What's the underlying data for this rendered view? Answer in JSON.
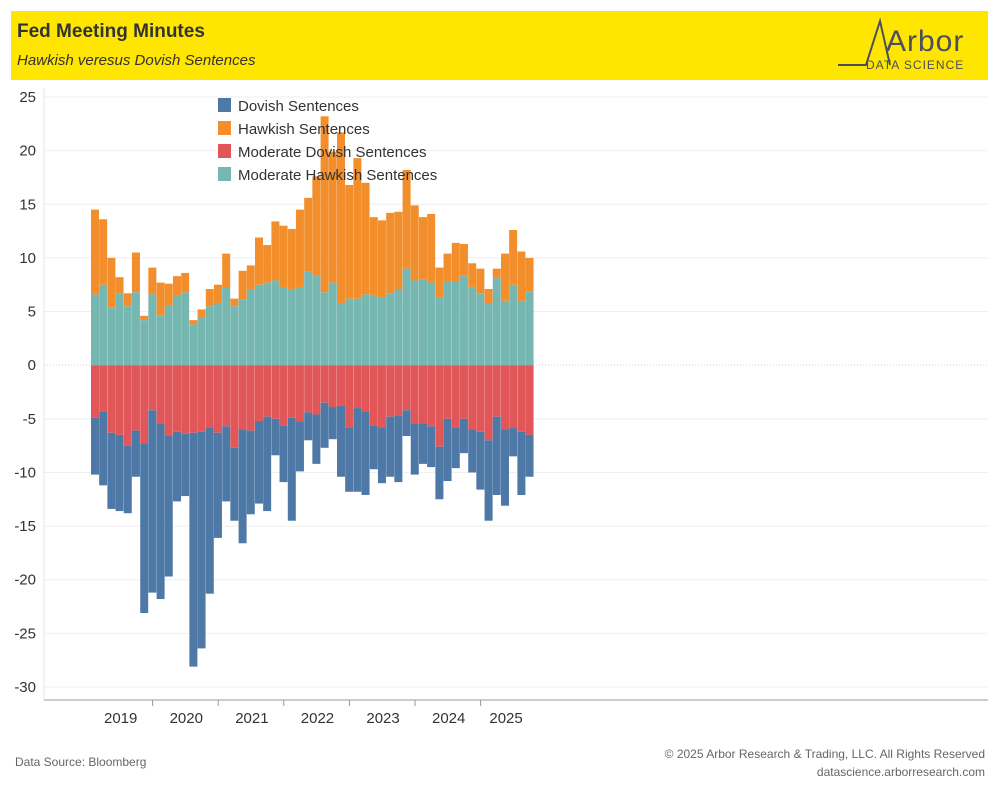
{
  "header": {
    "title": "Fed Meeting Minutes",
    "subtitle": "Hawkish veresus Dovish Sentences",
    "logo_word": "Arbor",
    "logo_sub": "DATA SCIENCE"
  },
  "footer": {
    "source": "Data Source: Bloomberg",
    "copyright": "© 2025 Arbor Research & Trading, LLC. All Rights Reserved",
    "website": "datascience.arborresearch.com"
  },
  "colors": {
    "dovish": "#4e79a7",
    "hawkish": "#f28e2b",
    "moderate_dovish": "#e15759",
    "moderate_hawkish": "#76b7b2",
    "header_bg": "#ffe600"
  },
  "chart_data": {
    "type": "bar",
    "stacked": true,
    "ylim": [
      -31,
      25
    ],
    "yticks": [
      25,
      20,
      15,
      10,
      5,
      0,
      -5,
      -10,
      -15,
      -20,
      -25,
      -30
    ],
    "year_labels": [
      "2019",
      "2020",
      "2021",
      "2022",
      "2023",
      "2024",
      "2025"
    ],
    "legend": [
      "Dovish Sentences",
      "Hawkish Sentences",
      "Moderate Dovish Sentences",
      "Moderate Hawkish Sentences"
    ],
    "legend_placement": "top-left",
    "grid": true,
    "meetings_per_year": 8,
    "series": [
      {
        "name": "Moderate Hawkish Sentences",
        "values": [
          6.6,
          7.5,
          5.4,
          6.7,
          5.5,
          6.8,
          4.2,
          6.6,
          4.6,
          5.6,
          6.5,
          6.8,
          3.8,
          4.5,
          5.5,
          5.8,
          7.2,
          5.5,
          6.1,
          7.1,
          7.5,
          7.7,
          7.9,
          7.2,
          7.1,
          7.2,
          8.7,
          8.4,
          6.8,
          7.7,
          5.8,
          6.2,
          6.2,
          6.6,
          6.5,
          6.3,
          6.7,
          7.1,
          9.0,
          7.9,
          8.0,
          7.7,
          6.3,
          7.8,
          7.8,
          8.3,
          7.3,
          6.7,
          5.7,
          8.1,
          6.0,
          7.5,
          6.0,
          6.9
        ]
      },
      {
        "name": "Hawkish Sentences",
        "values": [
          7.9,
          6.1,
          4.6,
          1.5,
          1.2,
          3.7,
          0.4,
          2.5,
          3.1,
          2.0,
          1.8,
          1.8,
          0.4,
          0.7,
          1.6,
          1.7,
          3.2,
          0.7,
          2.7,
          2.2,
          4.4,
          3.5,
          5.5,
          5.8,
          5.6,
          7.3,
          6.9,
          9.2,
          16.4,
          12.2,
          15.9,
          10.6,
          13.1,
          10.4,
          7.3,
          7.2,
          7.5,
          7.2,
          9.2,
          7.0,
          5.8,
          6.4,
          2.8,
          2.6,
          3.6,
          3.0,
          2.2,
          2.3,
          1.4,
          0.9,
          4.4,
          5.1,
          4.6,
          3.1
        ]
      },
      {
        "name": "Moderate Dovish Sentences",
        "values": [
          -4.9,
          -4.3,
          -6.3,
          -6.5,
          -7.5,
          -6.1,
          -7.3,
          -4.2,
          -5.4,
          -6.6,
          -6.2,
          -6.4,
          -6.3,
          -6.2,
          -5.8,
          -6.3,
          -5.7,
          -7.7,
          -6.0,
          -6.1,
          -5.2,
          -4.8,
          -5.0,
          -5.6,
          -4.9,
          -5.3,
          -4.4,
          -4.6,
          -3.5,
          -3.9,
          -3.8,
          -5.8,
          -4.0,
          -4.3,
          -5.6,
          -5.8,
          -4.8,
          -4.7,
          -4.2,
          -5.4,
          -5.4,
          -5.7,
          -7.6,
          -5.0,
          -5.8,
          -5.0,
          -6.0,
          -6.2,
          -7.0,
          -4.8,
          -6.0,
          -5.8,
          -6.2,
          -6.5
        ]
      },
      {
        "name": "Dovish Sentences",
        "values": [
          -5.3,
          -6.9,
          -7.1,
          -7.1,
          -6.3,
          -4.3,
          -15.8,
          -17.0,
          -16.4,
          -13.1,
          -6.5,
          -5.8,
          -21.8,
          -20.2,
          -15.5,
          -9.8,
          -7.0,
          -6.8,
          -10.6,
          -7.8,
          -7.7,
          -8.8,
          -3.4,
          -5.3,
          -9.6,
          -4.6,
          -2.6,
          -4.6,
          -4.2,
          -3.0,
          -6.6,
          -6.0,
          -7.8,
          -7.8,
          -4.1,
          -5.2,
          -5.6,
          -6.2,
          -2.4,
          -4.8,
          -3.8,
          -3.8,
          -4.9,
          -5.8,
          -3.8,
          -3.2,
          -4.0,
          -5.4,
          -7.5,
          -7.3,
          -7.1,
          -2.7,
          -5.9,
          -3.9
        ]
      }
    ]
  }
}
